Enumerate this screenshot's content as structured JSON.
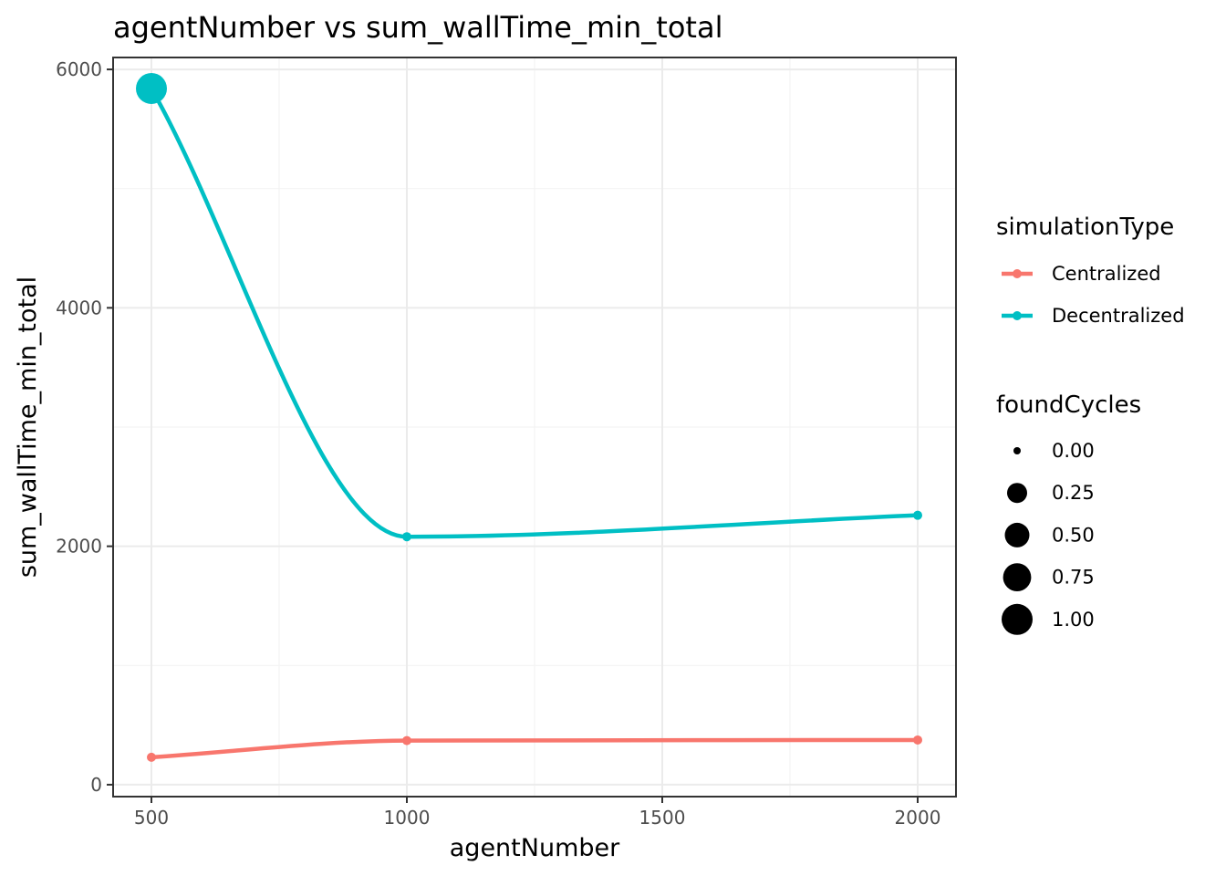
{
  "chart_data": {
    "type": "line",
    "title": "agentNumber  vs  sum_wallTime_min_total",
    "xlabel": "agentNumber",
    "ylabel": "sum_wallTime_min_total",
    "xlim": [
      425,
      2075
    ],
    "ylim": [
      -100,
      6100
    ],
    "x_ticks": [
      500,
      1000,
      1500,
      2000
    ],
    "x_tick_labels": [
      "500",
      "1000",
      "1500",
      "2000"
    ],
    "y_ticks": [
      0,
      2000,
      4000,
      6000
    ],
    "y_tick_labels": [
      "0",
      "2000",
      "4000",
      "6000"
    ],
    "grid": true,
    "smooth": true,
    "legend_position": "right",
    "color_legend": {
      "title": "simulationType",
      "entries": [
        {
          "label": "Centralized",
          "color": "#F8766D"
        },
        {
          "label": "Decentralized",
          "color": "#00BFC4"
        }
      ]
    },
    "size_legend": {
      "title": "foundCycles",
      "entries": [
        {
          "label": "0.00",
          "value": 0.0
        },
        {
          "label": "0.25",
          "value": 0.25
        },
        {
          "label": "0.50",
          "value": 0.5
        },
        {
          "label": "0.75",
          "value": 0.75
        },
        {
          "label": "1.00",
          "value": 1.0
        }
      ]
    },
    "series": [
      {
        "name": "Centralized",
        "color": "#F8766D",
        "x": [
          500,
          1000,
          2000
        ],
        "y": [
          230,
          370,
          375
        ],
        "foundCycles": [
          0,
          0,
          0
        ]
      },
      {
        "name": "Decentralized",
        "color": "#00BFC4",
        "x": [
          500,
          1000,
          2000
        ],
        "y": [
          5840,
          2080,
          2260
        ],
        "foundCycles": [
          1,
          0,
          0
        ]
      }
    ]
  }
}
